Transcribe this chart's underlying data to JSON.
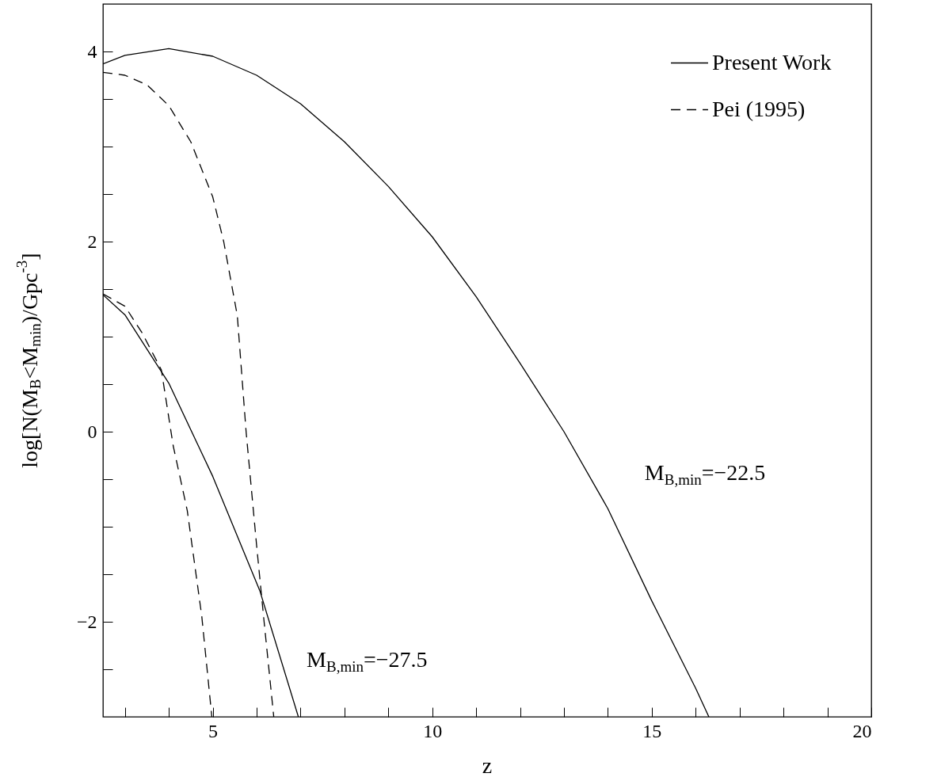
{
  "chart_data": {
    "type": "line",
    "xlabel": "z",
    "ylabel": "log[N(M$_{B}$<M$_{min}$)/Gpc$^{-3}$]",
    "xlim": [
      2.5,
      20
    ],
    "ylim": [
      -3,
      4.5
    ],
    "xticks": [
      {
        "value": 3,
        "label": null
      },
      {
        "value": 4,
        "label": null
      },
      5,
      {
        "value": 6,
        "label": null
      },
      {
        "value": 7,
        "label": null
      },
      {
        "value": 8,
        "label": null
      },
      {
        "value": 9,
        "label": null
      },
      10,
      {
        "value": 11,
        "label": null
      },
      {
        "value": 12,
        "label": null
      },
      {
        "value": 13,
        "label": null
      },
      {
        "value": 14,
        "label": null
      },
      15,
      {
        "value": 16,
        "label": null
      },
      {
        "value": 17,
        "label": null
      },
      {
        "value": 18,
        "label": null
      },
      {
        "value": 19,
        "label": null
      },
      20
    ],
    "yticks": [
      {
        "value": -2.5,
        "label": null
      },
      -2,
      {
        "value": -1.5,
        "label": null
      },
      {
        "value": -1,
        "label": null
      },
      {
        "value": -0.5,
        "label": null
      },
      0,
      {
        "value": 0.5,
        "label": null
      },
      {
        "value": 1,
        "label": null
      },
      {
        "value": 1.5,
        "label": null
      },
      2,
      {
        "value": 2.5,
        "label": null
      },
      {
        "value": 3,
        "label": null
      },
      {
        "value": 3.5,
        "label": null
      },
      4
    ],
    "legend": "top right",
    "grid": false,
    "series": [
      {
        "name": "Present Work",
        "color": "#000000",
        "line_style": "solid",
        "x": [
          2.5,
          3,
          4,
          5,
          6,
          7,
          8,
          9,
          10,
          11,
          12,
          13,
          14,
          15,
          16,
          16.3
        ],
        "values": [
          3.87,
          3.96,
          4.03,
          3.95,
          3.75,
          3.45,
          3.05,
          2.58,
          2.05,
          1.42,
          0.72,
          0.0,
          -0.81,
          -1.78,
          -2.7,
          -3.0
        ]
      },
      {
        "name": "Pei (1995)",
        "color": "#000000",
        "line_style": "dashed",
        "x": [
          2.5,
          3,
          3.5,
          4,
          4.5,
          5,
          5.25,
          5.56,
          5.76,
          6,
          6.17,
          6.39
        ],
        "values": [
          3.78,
          3.75,
          3.65,
          3.43,
          3.05,
          2.47,
          2.0,
          1.22,
          0.0,
          -1.2,
          -2.0,
          -3.0
        ]
      },
      {
        "color": "#000000",
        "line_style": "solid",
        "x": [
          2.5,
          3,
          4,
          5,
          6.07,
          6.95
        ],
        "values": [
          1.44,
          1.23,
          0.51,
          -0.47,
          -1.67,
          -3.0
        ]
      },
      {
        "color": "#000000",
        "line_style": "dashed",
        "x": [
          2.5,
          3,
          3.39,
          3.83,
          4.1,
          4.42,
          4.75,
          4.98
        ],
        "values": [
          1.45,
          1.32,
          1.04,
          0.65,
          -0.15,
          -0.83,
          -1.94,
          -3.0
        ]
      }
    ],
    "annotations": [
      "M$_{B,min}$=−22.5",
      "M$_{B,min}$=−27.5"
    ]
  }
}
